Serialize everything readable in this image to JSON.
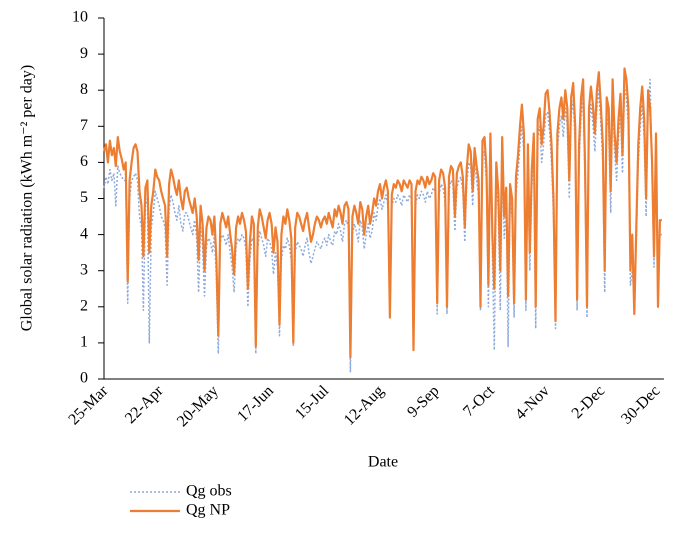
{
  "chart_data": {
    "type": "line",
    "y_label": "Global solar radiation (kWh m⁻² per day)",
    "x_label": "Date",
    "ylim": [
      0,
      10
    ],
    "yticks": [
      0,
      1,
      2,
      3,
      4,
      5,
      6,
      7,
      8,
      9,
      10
    ],
    "categories": [
      "25-Mar",
      null,
      null,
      null,
      null,
      null,
      null,
      null,
      null,
      null,
      null,
      null,
      null,
      null,
      null,
      null,
      null,
      null,
      null,
      null,
      null,
      null,
      null,
      null,
      null,
      null,
      null,
      null,
      "22-Apr",
      null,
      null,
      null,
      null,
      null,
      null,
      null,
      null,
      null,
      null,
      null,
      null,
      null,
      null,
      null,
      null,
      null,
      null,
      null,
      null,
      null,
      null,
      null,
      null,
      null,
      null,
      null,
      "20-May",
      null,
      null,
      null,
      null,
      null,
      null,
      null,
      null,
      null,
      null,
      null,
      null,
      null,
      null,
      null,
      null,
      null,
      null,
      null,
      null,
      null,
      null,
      null,
      null,
      null,
      null,
      null,
      "17-Jun",
      null,
      null,
      null,
      null,
      null,
      null,
      null,
      null,
      null,
      null,
      null,
      null,
      null,
      null,
      null,
      null,
      null,
      null,
      null,
      null,
      null,
      null,
      null,
      null,
      null,
      null,
      null,
      "15-Jul",
      null,
      null,
      null,
      null,
      null,
      null,
      null,
      null,
      null,
      null,
      null,
      null,
      null,
      null,
      null,
      null,
      null,
      null,
      null,
      null,
      null,
      null,
      null,
      null,
      null,
      null,
      null,
      "12-Aug",
      null,
      null,
      null,
      null,
      null,
      null,
      null,
      null,
      null,
      null,
      null,
      null,
      null,
      null,
      null,
      null,
      null,
      null,
      null,
      null,
      null,
      null,
      null,
      null,
      null,
      null,
      null,
      "9-Sep",
      null,
      null,
      null,
      null,
      null,
      null,
      null,
      null,
      null,
      null,
      null,
      null,
      null,
      null,
      null,
      null,
      null,
      null,
      null,
      null,
      null,
      null,
      null,
      null,
      null,
      null,
      null,
      "7-Oct",
      null,
      null,
      null,
      null,
      null,
      null,
      null,
      null,
      null,
      null,
      null,
      null,
      null,
      null,
      null,
      null,
      null,
      null,
      null,
      null,
      null,
      null,
      null,
      null,
      null,
      null,
      null,
      "4-Nov",
      null,
      null,
      null,
      null,
      null,
      null,
      null,
      null,
      null,
      null,
      null,
      null,
      null,
      null,
      null,
      null,
      null,
      null,
      null,
      null,
      null,
      null,
      null,
      null,
      null,
      null,
      null,
      "2-Dec",
      null,
      null,
      null,
      null,
      null,
      null,
      null,
      null,
      null,
      null,
      null,
      null,
      null,
      null,
      null,
      null,
      null,
      null,
      null,
      null,
      null,
      null,
      null,
      null,
      null,
      null,
      null,
      "30-Dec",
      null,
      null,
      null
    ],
    "series": [
      {
        "name": "Qg obs",
        "color": "#8ea9db",
        "dash": "2,2",
        "values": [
          5.3,
          5.6,
          5.4,
          5.8,
          5.5,
          5.7,
          4.8,
          5.9,
          5.7,
          5.6,
          5.5,
          5.5,
          2.1,
          5.0,
          5.5,
          5.6,
          5.7,
          5.5,
          4.5,
          4.2,
          1.9,
          4.8,
          5.0,
          1.0,
          4.2,
          4.6,
          5.2,
          5.0,
          4.8,
          4.5,
          4.4,
          4.2,
          2.6,
          4.7,
          5.1,
          4.9,
          4.6,
          4.4,
          4.8,
          4.3,
          4.1,
          4.6,
          4.6,
          4.4,
          4.2,
          4.0,
          4.4,
          3.9,
          2.4,
          4.2,
          3.7,
          2.3,
          3.7,
          3.9,
          3.8,
          3.5,
          4.0,
          2.8,
          0.7,
          3.8,
          4.0,
          3.9,
          3.7,
          4.0,
          3.5,
          3.1,
          2.4,
          3.7,
          3.9,
          3.8,
          4.0,
          3.9,
          3.6,
          2.0,
          3.3,
          3.9,
          3.8,
          0.7,
          3.6,
          4.1,
          3.9,
          3.7,
          3.4,
          3.9,
          3.8,
          3.6,
          2.9,
          3.5,
          3.1,
          1.2,
          3.3,
          3.7,
          3.6,
          3.9,
          3.7,
          3.3,
          0.9,
          3.5,
          3.8,
          3.7,
          3.6,
          3.4,
          3.7,
          3.9,
          3.5,
          3.2,
          3.4,
          3.6,
          3.8,
          3.7,
          3.6,
          3.8,
          3.9,
          3.7,
          4.0,
          3.8,
          3.7,
          4.1,
          4.0,
          4.3,
          4.1,
          3.8,
          4.3,
          4.4,
          4.2,
          0.2,
          4.0,
          4.3,
          4.1,
          3.8,
          4.4,
          4.2,
          3.6,
          4.0,
          4.3,
          3.9,
          4.1,
          4.6,
          4.4,
          4.8,
          5.0,
          4.7,
          4.9,
          5.1,
          4.8,
          1.9,
          4.8,
          5.0,
          4.9,
          5.1,
          5.0,
          4.8,
          5.1,
          5.0,
          4.9,
          5.1,
          5.0,
          0.8,
          4.8,
          5.1,
          5.0,
          5.2,
          5.1,
          4.9,
          5.2,
          5.0,
          5.1,
          5.3,
          5.2,
          1.8,
          5.1,
          5.4,
          5.3,
          4.9,
          1.8,
          5.2,
          5.5,
          5.4,
          4.1,
          5.3,
          5.5,
          5.6,
          5.2,
          3.8,
          5.4,
          6.0,
          5.9,
          4.8,
          6.0,
          5.5,
          5.1,
          1.9,
          6.2,
          6.3,
          5.4,
          2.0,
          6.3,
          3.4,
          0.8,
          5.5,
          4.7,
          1.9,
          6.2,
          3.9,
          4.8,
          0.9,
          4.9,
          4.5,
          1.7,
          5.1,
          5.7,
          6.5,
          7.0,
          6.3,
          1.9,
          6.0,
          3.0,
          5.3,
          6.3,
          1.4,
          6.7,
          7.0,
          6.0,
          6.5,
          7.3,
          7.4,
          6.9,
          6.0,
          4.5,
          1.4,
          6.3,
          7.0,
          7.3,
          6.7,
          7.5,
          7.0,
          5.0,
          7.3,
          7.7,
          6.5,
          1.9,
          6.0,
          7.3,
          7.8,
          5.5,
          1.7,
          7.0,
          7.6,
          7.1,
          6.3,
          7.5,
          8.0,
          7.1,
          6.0,
          2.4,
          7.3,
          7.0,
          4.6,
          7.8,
          6.3,
          5.5,
          6.7,
          7.4,
          5.7,
          8.1,
          7.8,
          7.0,
          2.6,
          3.0,
          2.3,
          3.8,
          6.0,
          7.0,
          7.6,
          6.7,
          4.5,
          7.5,
          8.3,
          5.5,
          3.1,
          6.3,
          3.0,
          4.0,
          4.0
        ]
      },
      {
        "name": "Qg NP",
        "color": "#ed7d31",
        "values": [
          6.3,
          6.5,
          6.0,
          6.6,
          6.2,
          6.4,
          5.9,
          6.7,
          6.3,
          6.1,
          5.8,
          6.0,
          2.7,
          5.5,
          6.0,
          6.4,
          6.5,
          6.3,
          5.2,
          4.8,
          3.4,
          5.3,
          5.5,
          3.5,
          4.8,
          5.2,
          5.8,
          5.6,
          5.5,
          5.2,
          5.0,
          4.8,
          3.4,
          5.4,
          5.8,
          5.6,
          5.3,
          5.1,
          5.5,
          5.0,
          4.7,
          5.2,
          5.3,
          5.0,
          4.8,
          4.6,
          5.0,
          4.5,
          3.3,
          4.8,
          4.3,
          3.0,
          4.2,
          4.5,
          4.4,
          4.0,
          4.5,
          3.3,
          1.2,
          4.3,
          4.6,
          4.4,
          4.2,
          4.5,
          4.0,
          3.6,
          2.9,
          4.2,
          4.5,
          4.3,
          4.6,
          4.4,
          4.1,
          2.5,
          3.8,
          4.5,
          4.3,
          0.9,
          4.2,
          4.7,
          4.5,
          4.2,
          3.9,
          4.4,
          4.6,
          4.3,
          3.5,
          4.2,
          3.8,
          1.5,
          4.0,
          4.5,
          4.3,
          4.7,
          4.4,
          3.9,
          1.0,
          4.2,
          4.6,
          4.5,
          4.3,
          4.1,
          4.4,
          4.6,
          4.2,
          3.8,
          4.0,
          4.3,
          4.5,
          4.4,
          4.2,
          4.4,
          4.5,
          4.3,
          4.6,
          4.4,
          4.2,
          4.7,
          4.5,
          4.8,
          4.6,
          4.3,
          4.8,
          4.9,
          4.7,
          0.6,
          4.5,
          4.8,
          4.6,
          4.3,
          4.9,
          4.7,
          4.0,
          4.5,
          4.8,
          4.3,
          4.6,
          5.0,
          4.8,
          5.2,
          5.4,
          5.0,
          5.3,
          5.5,
          5.2,
          1.7,
          5.1,
          5.4,
          5.3,
          5.5,
          5.4,
          5.2,
          5.5,
          5.4,
          5.3,
          5.5,
          5.4,
          0.8,
          5.2,
          5.5,
          5.4,
          5.6,
          5.5,
          5.3,
          5.6,
          5.4,
          5.5,
          5.7,
          5.6,
          2.1,
          5.5,
          5.8,
          5.7,
          5.3,
          2.0,
          5.6,
          5.9,
          5.8,
          4.5,
          5.7,
          5.9,
          6.0,
          5.6,
          4.2,
          5.8,
          6.5,
          6.3,
          5.2,
          6.4,
          5.9,
          5.5,
          2.0,
          6.6,
          6.7,
          5.8,
          2.6,
          6.8,
          4.0,
          2.5,
          6.0,
          5.2,
          3.0,
          6.7,
          4.5,
          5.3,
          2.3,
          5.4,
          5.0,
          2.1,
          5.6,
          6.2,
          7.0,
          7.6,
          6.8,
          2.2,
          6.5,
          3.5,
          5.8,
          6.8,
          2.0,
          7.2,
          7.5,
          6.5,
          7.0,
          7.9,
          8.0,
          7.4,
          6.5,
          5.0,
          1.6,
          6.8,
          7.5,
          7.8,
          7.2,
          8.0,
          7.5,
          5.5,
          7.8,
          8.2,
          7.0,
          2.2,
          6.5,
          7.8,
          8.3,
          6.0,
          2.0,
          7.5,
          8.1,
          7.6,
          6.8,
          8.0,
          8.5,
          7.6,
          6.5,
          3.0,
          7.8,
          7.5,
          5.2,
          8.3,
          6.8,
          6.0,
          7.2,
          7.9,
          6.2,
          8.6,
          8.3,
          7.5,
          3.0,
          4.0,
          1.8,
          4.2,
          6.5,
          7.5,
          8.1,
          7.2,
          5.0,
          8.0,
          7.5,
          6.0,
          3.4,
          6.8,
          2.0,
          4.4,
          4.4
        ]
      }
    ],
    "legend": "bottom-left"
  }
}
